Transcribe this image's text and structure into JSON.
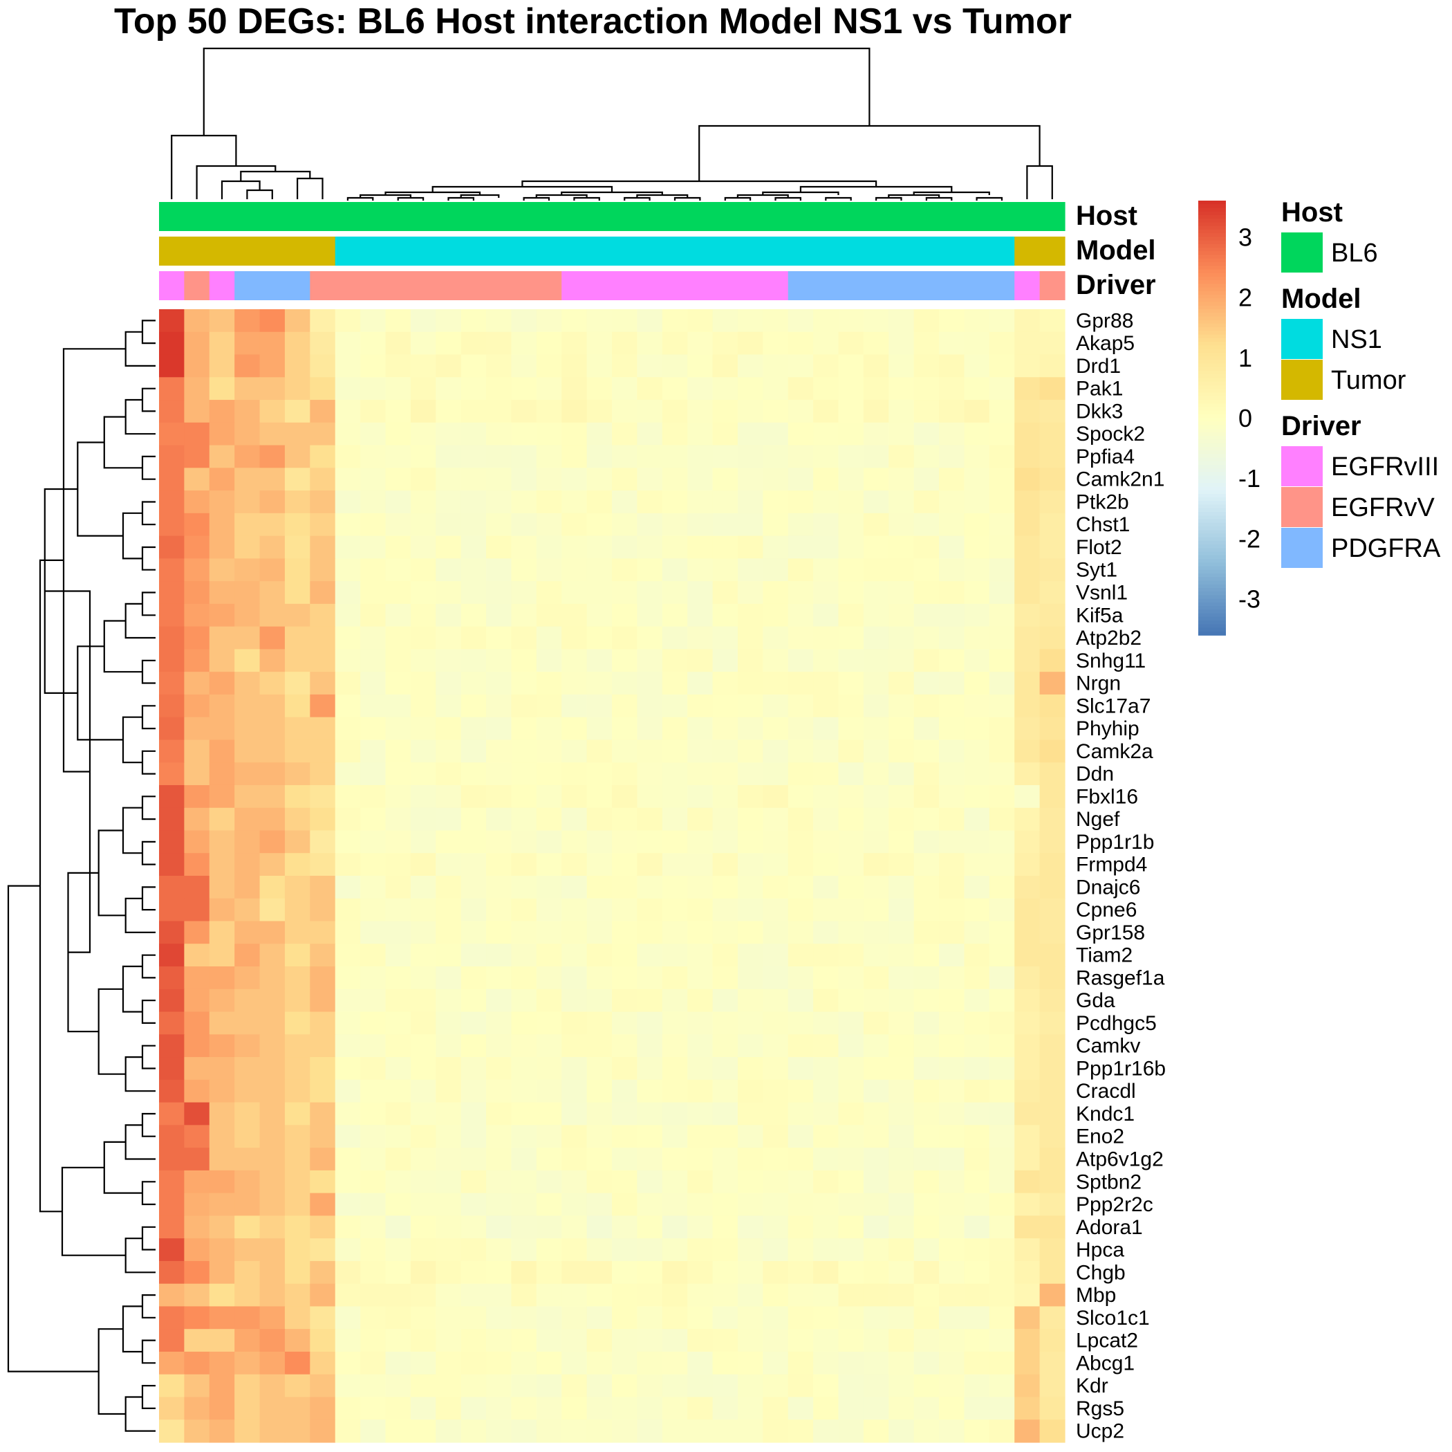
{
  "chart_data": {
    "type": "heatmap",
    "title": "Top 50 DEGs: BL6 Host interaction Model NS1 vs Tumor",
    "color_scale": {
      "min": -3.6,
      "max": 3.6,
      "ticks": [
        3,
        2,
        1,
        0,
        -1,
        -2,
        -3
      ],
      "colors": [
        "#4575B4",
        "#91BFDB",
        "#E0F3F8",
        "#FFFFBF",
        "#FEE090",
        "#FC8D59",
        "#D73027"
      ]
    },
    "annotations": [
      {
        "name": "Host",
        "segments": [
          {
            "label": "BL6",
            "count": 36
          }
        ],
        "legend": [
          {
            "label": "BL6",
            "color": "#00D65C"
          }
        ]
      },
      {
        "name": "Model",
        "segments": [
          {
            "label": "Tumor",
            "count": 7
          },
          {
            "label": "NS1",
            "count": 27
          },
          {
            "label": "Tumor",
            "count": 2
          }
        ],
        "legend": [
          {
            "label": "NS1",
            "color": "#00DCE0"
          },
          {
            "label": "Tumor",
            "color": "#D4B800"
          }
        ]
      },
      {
        "name": "Driver",
        "segments": [
          {
            "label": "EGFRvIII",
            "count": 1
          },
          {
            "label": "EGFRvV",
            "count": 1
          },
          {
            "label": "EGFRvIII",
            "count": 1
          },
          {
            "label": "PDGFRA",
            "count": 3
          },
          {
            "label": "EGFRvV",
            "count": 10
          },
          {
            "label": "EGFRvIII",
            "count": 9
          },
          {
            "label": "PDGFRA",
            "count": 9
          },
          {
            "label": "EGFRvIII",
            "count": 1
          },
          {
            "label": "EGFRvV",
            "count": 1
          }
        ],
        "legend": [
          {
            "label": "EGFRvIII",
            "color": "#FF80FF"
          },
          {
            "label": "EGFRvV",
            "color": "#FF9488"
          },
          {
            "label": "PDGFRA",
            "color": "#80B8FF"
          }
        ]
      }
    ],
    "genes": [
      "Gpr88",
      "Akap5",
      "Drd1",
      "Pak1",
      "Dkk3",
      "Spock2",
      "Ppfia4",
      "Camk2n1",
      "Ptk2b",
      "Chst1",
      "Flot2",
      "Syt1",
      "Vsnl1",
      "Kif5a",
      "Atp2b2",
      "Snhg11",
      "Nrgn",
      "Slc17a7",
      "Phyhip",
      "Camk2a",
      "Ddn",
      "Fbxl16",
      "Ngef",
      "Ppp1r1b",
      "Frmpd4",
      "Dnajc6",
      "Cpne6",
      "Gpr158",
      "Tiam2",
      "Rasgef1a",
      "Gda",
      "Pcdhgc5",
      "Camkv",
      "Ppp1r16b",
      "Cracdl",
      "Kndc1",
      "Eno2",
      "Atp6v1g2",
      "Sptbn2",
      "Ppp2r2c",
      "Adora1",
      "Hpca",
      "Chgb",
      "Mbp",
      "Slco1c1",
      "Lpcat2",
      "Abcg1",
      "Kdr",
      "Rgs5",
      "Ucp2"
    ],
    "row_first7": [
      [
        3.4,
        1.8,
        1.6,
        2.2,
        2.4,
        1.6,
        0.6
      ],
      [
        3.5,
        1.9,
        1.4,
        2.0,
        2.0,
        1.4,
        0.8
      ],
      [
        3.5,
        1.9,
        1.4,
        2.2,
        2.0,
        1.4,
        0.9
      ],
      [
        2.6,
        1.8,
        1.2,
        1.6,
        1.6,
        1.4,
        1.2
      ],
      [
        2.6,
        1.8,
        2.0,
        1.8,
        1.4,
        1.0,
        1.8
      ],
      [
        2.5,
        2.5,
        2.0,
        1.8,
        1.6,
        1.6,
        1.6
      ],
      [
        2.6,
        2.5,
        1.6,
        2.0,
        2.2,
        1.6,
        1.2
      ],
      [
        2.6,
        1.6,
        2.0,
        1.6,
        1.6,
        1.0,
        1.4
      ],
      [
        2.6,
        2.0,
        1.8,
        1.6,
        1.8,
        1.4,
        1.6
      ],
      [
        2.6,
        2.4,
        1.8,
        1.4,
        1.4,
        1.2,
        1.4
      ],
      [
        2.8,
        2.3,
        1.8,
        1.4,
        1.6,
        1.1,
        1.6
      ],
      [
        2.6,
        2.1,
        1.6,
        1.7,
        1.8,
        1.2,
        1.6
      ],
      [
        2.6,
        2.2,
        1.8,
        1.8,
        1.6,
        1.2,
        1.8
      ],
      [
        2.6,
        2.1,
        2.0,
        1.8,
        1.6,
        1.6,
        1.4
      ],
      [
        2.7,
        2.3,
        1.6,
        1.6,
        2.2,
        1.4,
        1.4
      ],
      [
        2.7,
        2.2,
        1.6,
        1.2,
        1.8,
        1.4,
        1.4
      ],
      [
        2.6,
        1.8,
        2.0,
        1.6,
        1.4,
        1.0,
        1.6
      ],
      [
        2.7,
        2.0,
        1.8,
        1.6,
        1.6,
        1.2,
        2.2
      ],
      [
        2.8,
        1.8,
        1.8,
        1.6,
        1.6,
        1.4,
        1.4
      ],
      [
        2.6,
        1.6,
        2.0,
        1.6,
        1.6,
        1.4,
        1.4
      ],
      [
        2.5,
        1.6,
        2.0,
        1.8,
        1.8,
        1.6,
        1.4
      ],
      [
        3.1,
        2.2,
        2.0,
        1.6,
        1.6,
        1.2,
        1.0
      ],
      [
        3.1,
        1.8,
        1.4,
        1.8,
        1.8,
        1.4,
        1.2
      ],
      [
        3.1,
        2.0,
        1.6,
        1.8,
        2.0,
        1.6,
        0.8
      ],
      [
        3.1,
        2.3,
        1.6,
        1.8,
        1.6,
        1.2,
        1.0
      ],
      [
        2.8,
        2.8,
        1.6,
        1.8,
        1.2,
        1.4,
        1.6
      ],
      [
        2.8,
        2.8,
        1.8,
        1.6,
        1.0,
        1.4,
        1.6
      ],
      [
        3.1,
        2.2,
        1.4,
        1.8,
        1.8,
        1.4,
        1.4
      ],
      [
        3.3,
        1.5,
        1.4,
        2.0,
        1.6,
        1.2,
        1.6
      ],
      [
        3.0,
        2.0,
        2.0,
        1.8,
        1.6,
        1.4,
        1.8
      ],
      [
        3.1,
        2.0,
        1.8,
        1.6,
        1.6,
        1.4,
        1.8
      ],
      [
        2.8,
        2.2,
        1.6,
        1.6,
        1.6,
        1.2,
        1.4
      ],
      [
        3.1,
        2.2,
        2.0,
        1.8,
        1.6,
        1.4,
        1.4
      ],
      [
        3.1,
        1.8,
        1.8,
        1.6,
        1.6,
        1.4,
        1.2
      ],
      [
        3.0,
        2.0,
        1.8,
        1.6,
        1.6,
        1.4,
        1.2
      ],
      [
        2.6,
        3.2,
        1.6,
        1.4,
        1.6,
        1.2,
        1.6
      ],
      [
        2.8,
        2.6,
        1.6,
        1.4,
        1.6,
        1.4,
        1.6
      ],
      [
        2.8,
        2.8,
        1.6,
        1.6,
        1.6,
        1.4,
        1.8
      ],
      [
        2.6,
        2.0,
        2.0,
        1.8,
        1.6,
        1.4,
        1.2
      ],
      [
        2.6,
        1.9,
        1.8,
        1.8,
        1.6,
        1.4,
        2.0
      ],
      [
        2.6,
        1.8,
        1.6,
        1.2,
        1.4,
        1.2,
        1.4
      ],
      [
        3.2,
        2.0,
        1.8,
        1.6,
        1.6,
        1.2,
        1.0
      ],
      [
        2.8,
        2.4,
        1.8,
        1.4,
        1.6,
        1.2,
        1.6
      ],
      [
        1.8,
        1.6,
        1.2,
        1.4,
        1.6,
        1.4,
        1.8
      ],
      [
        2.6,
        2.4,
        2.2,
        2.2,
        2.0,
        1.4,
        1.0
      ],
      [
        2.6,
        1.4,
        1.4,
        2.0,
        2.2,
        1.8,
        1.2
      ],
      [
        2.0,
        2.2,
        2.0,
        1.8,
        2.0,
        2.4,
        1.4
      ],
      [
        1.2,
        1.6,
        2.0,
        1.4,
        1.6,
        1.4,
        1.6
      ],
      [
        1.4,
        1.8,
        2.0,
        1.4,
        1.6,
        1.6,
        1.8
      ],
      [
        1.0,
        1.6,
        1.8,
        1.4,
        1.6,
        1.6,
        1.8
      ]
    ],
    "row_last2": [
      [
        0.3,
        0.2
      ],
      [
        0.3,
        0.3
      ],
      [
        0.3,
        0.4
      ],
      [
        1.0,
        1.2
      ],
      [
        0.9,
        0.8
      ],
      [
        1.0,
        0.9
      ],
      [
        1.0,
        0.9
      ],
      [
        1.2,
        1.0
      ],
      [
        1.0,
        0.8
      ],
      [
        1.0,
        0.7
      ],
      [
        0.9,
        0.7
      ],
      [
        0.9,
        0.8
      ],
      [
        0.9,
        0.7
      ],
      [
        0.7,
        0.8
      ],
      [
        0.8,
        0.9
      ],
      [
        0.8,
        1.2
      ],
      [
        0.9,
        1.8
      ],
      [
        0.9,
        1.1
      ],
      [
        0.8,
        1.0
      ],
      [
        0.9,
        1.2
      ],
      [
        0.6,
        0.9
      ],
      [
        -0.2,
        0.9
      ],
      [
        0.4,
        0.8
      ],
      [
        0.5,
        0.8
      ],
      [
        0.6,
        0.9
      ],
      [
        0.8,
        0.9
      ],
      [
        0.9,
        0.8
      ],
      [
        0.9,
        0.8
      ],
      [
        0.9,
        0.9
      ],
      [
        0.7,
        0.9
      ],
      [
        0.6,
        0.8
      ],
      [
        0.5,
        0.7
      ],
      [
        0.6,
        0.8
      ],
      [
        0.6,
        0.8
      ],
      [
        0.7,
        0.8
      ],
      [
        0.8,
        0.8
      ],
      [
        0.5,
        0.8
      ],
      [
        0.5,
        0.9
      ],
      [
        1.0,
        0.9
      ],
      [
        0.5,
        0.7
      ],
      [
        1.0,
        1.0
      ],
      [
        0.5,
        0.9
      ],
      [
        0.4,
        0.9
      ],
      [
        0.3,
        1.8
      ],
      [
        1.6,
        0.8
      ],
      [
        1.4,
        0.9
      ],
      [
        1.4,
        0.8
      ],
      [
        1.5,
        0.8
      ],
      [
        1.4,
        0.9
      ],
      [
        1.8,
        1.2
      ]
    ],
    "ns1_mean": [
      -0.1,
      0.0,
      0.0,
      0.0,
      0.1,
      -0.1,
      -0.1,
      -0.1,
      -0.1,
      -0.1,
      -0.1,
      -0.1,
      -0.1,
      -0.1,
      -0.1,
      -0.1,
      -0.1,
      -0.1,
      -0.1,
      -0.1,
      -0.1,
      0.0,
      -0.1,
      -0.1,
      0.0,
      -0.1,
      -0.1,
      -0.1,
      -0.1,
      -0.1,
      -0.1,
      -0.1,
      -0.1,
      -0.1,
      -0.1,
      -0.1,
      -0.1,
      -0.1,
      -0.1,
      -0.1,
      -0.2,
      -0.1,
      0.1,
      0.0,
      -0.1,
      -0.1,
      -0.1,
      -0.1,
      -0.1,
      -0.1
    ]
  }
}
